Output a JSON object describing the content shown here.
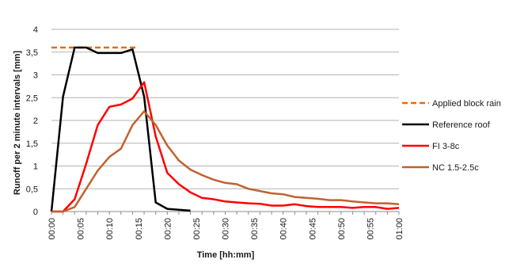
{
  "chart_data": {
    "type": "line",
    "title": "",
    "xlabel": "Time [hh:mm]",
    "ylabel": "Runoff per 2 minute intervals [mm]",
    "ylim": [
      0,
      4
    ],
    "yticks": [
      {
        "value": 0,
        "label": "0"
      },
      {
        "value": 0.5,
        "label": "0,5"
      },
      {
        "value": 1,
        "label": "1"
      },
      {
        "value": 1.5,
        "label": "1,5"
      },
      {
        "value": 2,
        "label": "2"
      },
      {
        "value": 2.5,
        "label": "2,5"
      },
      {
        "value": 3,
        "label": "3"
      },
      {
        "value": 3.5,
        "label": "3,5"
      },
      {
        "value": 4,
        "label": "4"
      }
    ],
    "xlim": [
      0,
      60
    ],
    "xticks": [
      {
        "value": 0,
        "label": "00:00"
      },
      {
        "value": 5,
        "label": "00:05"
      },
      {
        "value": 10,
        "label": "00:10"
      },
      {
        "value": 15,
        "label": "00:15"
      },
      {
        "value": 20,
        "label": "00:20"
      },
      {
        "value": 25,
        "label": "00:25"
      },
      {
        "value": 30,
        "label": "00:30"
      },
      {
        "value": 35,
        "label": "00:35"
      },
      {
        "value": 40,
        "label": "00:40"
      },
      {
        "value": 45,
        "label": "00:45"
      },
      {
        "value": 50,
        "label": "00:50"
      },
      {
        "value": 55,
        "label": "00:55"
      },
      {
        "value": 60,
        "label": "01:00"
      }
    ],
    "grid": "horizontal",
    "legend_position": "right",
    "series": [
      {
        "name": "Applied block rain",
        "color": "#E46C0A",
        "style": "dashed",
        "x": [
          0,
          15
        ],
        "y": [
          3.6,
          3.6
        ]
      },
      {
        "name": "Reference roof",
        "color": "#000000",
        "style": "solid",
        "x": [
          0,
          2,
          4,
          6,
          8,
          10,
          12,
          14,
          16,
          18,
          20,
          24
        ],
        "y": [
          0,
          2.52,
          3.6,
          3.6,
          3.48,
          3.48,
          3.48,
          3.56,
          2.52,
          0.2,
          0.06,
          0.02
        ]
      },
      {
        "name": "FI 3-8c",
        "color": "#FF0000",
        "style": "solid",
        "x": [
          0,
          2,
          4,
          6,
          8,
          10,
          12,
          14,
          16,
          18,
          20,
          22,
          24,
          26,
          28,
          30,
          32,
          34,
          36,
          38,
          40,
          42,
          44,
          46,
          48,
          50,
          52,
          54,
          56,
          58,
          60
        ],
        "y": [
          0,
          0,
          0.27,
          1.05,
          1.9,
          2.3,
          2.35,
          2.48,
          2.84,
          1.65,
          0.85,
          0.6,
          0.42,
          0.3,
          0.27,
          0.22,
          0.2,
          0.18,
          0.17,
          0.13,
          0.13,
          0.16,
          0.12,
          0.1,
          0.1,
          0.1,
          0.08,
          0.1,
          0.1,
          0.06,
          0.08
        ]
      },
      {
        "name": "NC 1.5-2.5c",
        "color": "#C0622E",
        "style": "solid",
        "x": [
          0,
          2,
          4,
          6,
          8,
          10,
          12,
          14,
          16,
          18,
          20,
          22,
          24,
          26,
          28,
          30,
          32,
          34,
          36,
          38,
          40,
          42,
          44,
          46,
          48,
          50,
          52,
          54,
          56,
          58,
          60
        ],
        "y": [
          0,
          0,
          0.1,
          0.5,
          0.9,
          1.2,
          1.38,
          1.9,
          2.2,
          1.9,
          1.45,
          1.12,
          0.92,
          0.8,
          0.7,
          0.63,
          0.6,
          0.5,
          0.45,
          0.4,
          0.38,
          0.32,
          0.3,
          0.28,
          0.25,
          0.25,
          0.22,
          0.2,
          0.18,
          0.18,
          0.16
        ]
      }
    ]
  }
}
